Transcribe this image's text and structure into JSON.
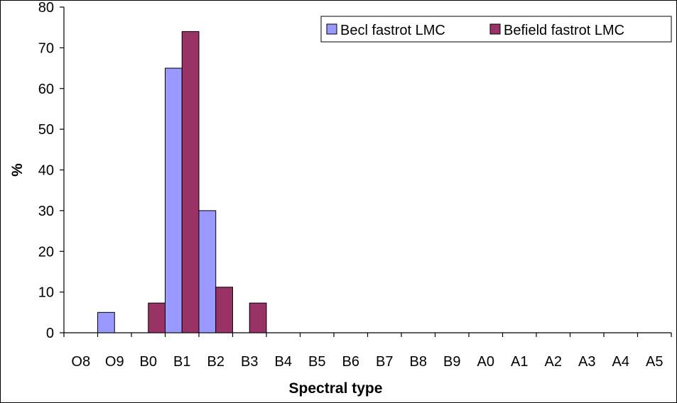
{
  "chart_data": {
    "type": "bar",
    "title": "",
    "xlabel": "Spectral type",
    "ylabel": "%",
    "ylim": [
      0,
      80
    ],
    "yticks": [
      0,
      10,
      20,
      30,
      40,
      50,
      60,
      70,
      80
    ],
    "grid": false,
    "legend_position": "top-right",
    "categories": [
      "O8",
      "O9",
      "B0",
      "B1",
      "B2",
      "B3",
      "B4",
      "B5",
      "B6",
      "B7",
      "B8",
      "B9",
      "A0",
      "A1",
      "A2",
      "A3",
      "A4",
      "A5"
    ],
    "series": [
      {
        "name": "Becl fastrot LMC",
        "color": "#9999ff",
        "values": [
          0,
          5,
          0,
          65,
          30,
          0,
          0,
          0,
          0,
          0,
          0,
          0,
          0,
          0,
          0,
          0,
          0,
          0
        ]
      },
      {
        "name": "Befield fastrot LMC",
        "color": "#993366",
        "values": [
          0,
          0,
          7.3,
          74,
          11.2,
          7.3,
          0,
          0,
          0,
          0,
          0,
          0,
          0,
          0,
          0,
          0,
          0,
          0
        ]
      }
    ]
  }
}
